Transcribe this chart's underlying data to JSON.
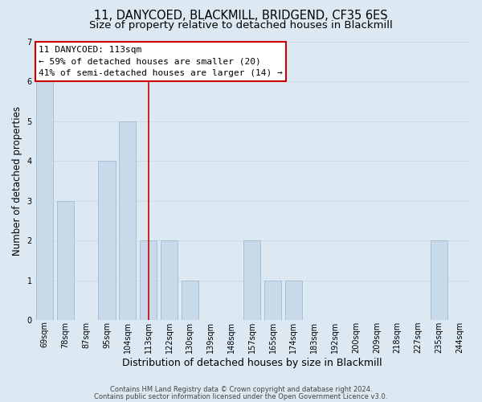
{
  "title": "11, DANYCOED, BLACKMILL, BRIDGEND, CF35 6ES",
  "subtitle": "Size of property relative to detached houses in Blackmill",
  "xlabel": "Distribution of detached houses by size in Blackmill",
  "ylabel": "Number of detached properties",
  "footnote1": "Contains HM Land Registry data © Crown copyright and database right 2024.",
  "footnote2": "Contains public sector information licensed under the Open Government Licence v3.0.",
  "bin_labels": [
    "69sqm",
    "78sqm",
    "87sqm",
    "95sqm",
    "104sqm",
    "113sqm",
    "122sqm",
    "130sqm",
    "139sqm",
    "148sqm",
    "157sqm",
    "165sqm",
    "174sqm",
    "183sqm",
    "192sqm",
    "200sqm",
    "209sqm",
    "218sqm",
    "227sqm",
    "235sqm",
    "244sqm"
  ],
  "bar_counts": [
    6,
    3,
    0,
    4,
    5,
    2,
    2,
    1,
    0,
    0,
    2,
    1,
    1,
    0,
    0,
    0,
    0,
    0,
    0,
    2,
    0
  ],
  "vline_bin_index": 5,
  "bar_color": "#c8d9ea",
  "bar_edge_color": "#a0bcd0",
  "vline_color": "#cc0000",
  "annotation_title": "11 DANYCOED: 113sqm",
  "annotation_line1": "← 59% of detached houses are smaller (20)",
  "annotation_line2": "41% of semi-detached houses are larger (14) →",
  "annotation_box_facecolor": "#ffffff",
  "annotation_box_edgecolor": "#cc0000",
  "ylim": [
    0,
    7
  ],
  "yticks": [
    0,
    1,
    2,
    3,
    4,
    5,
    6,
    7
  ],
  "grid_color": "#d0dce8",
  "bg_color": "#dce9f3",
  "title_fontsize": 10.5,
  "subtitle_fontsize": 9.5,
  "xlabel_fontsize": 9,
  "ylabel_fontsize": 8.5,
  "tick_fontsize": 7,
  "footnote_fontsize": 6,
  "annotation_fontsize": 8
}
